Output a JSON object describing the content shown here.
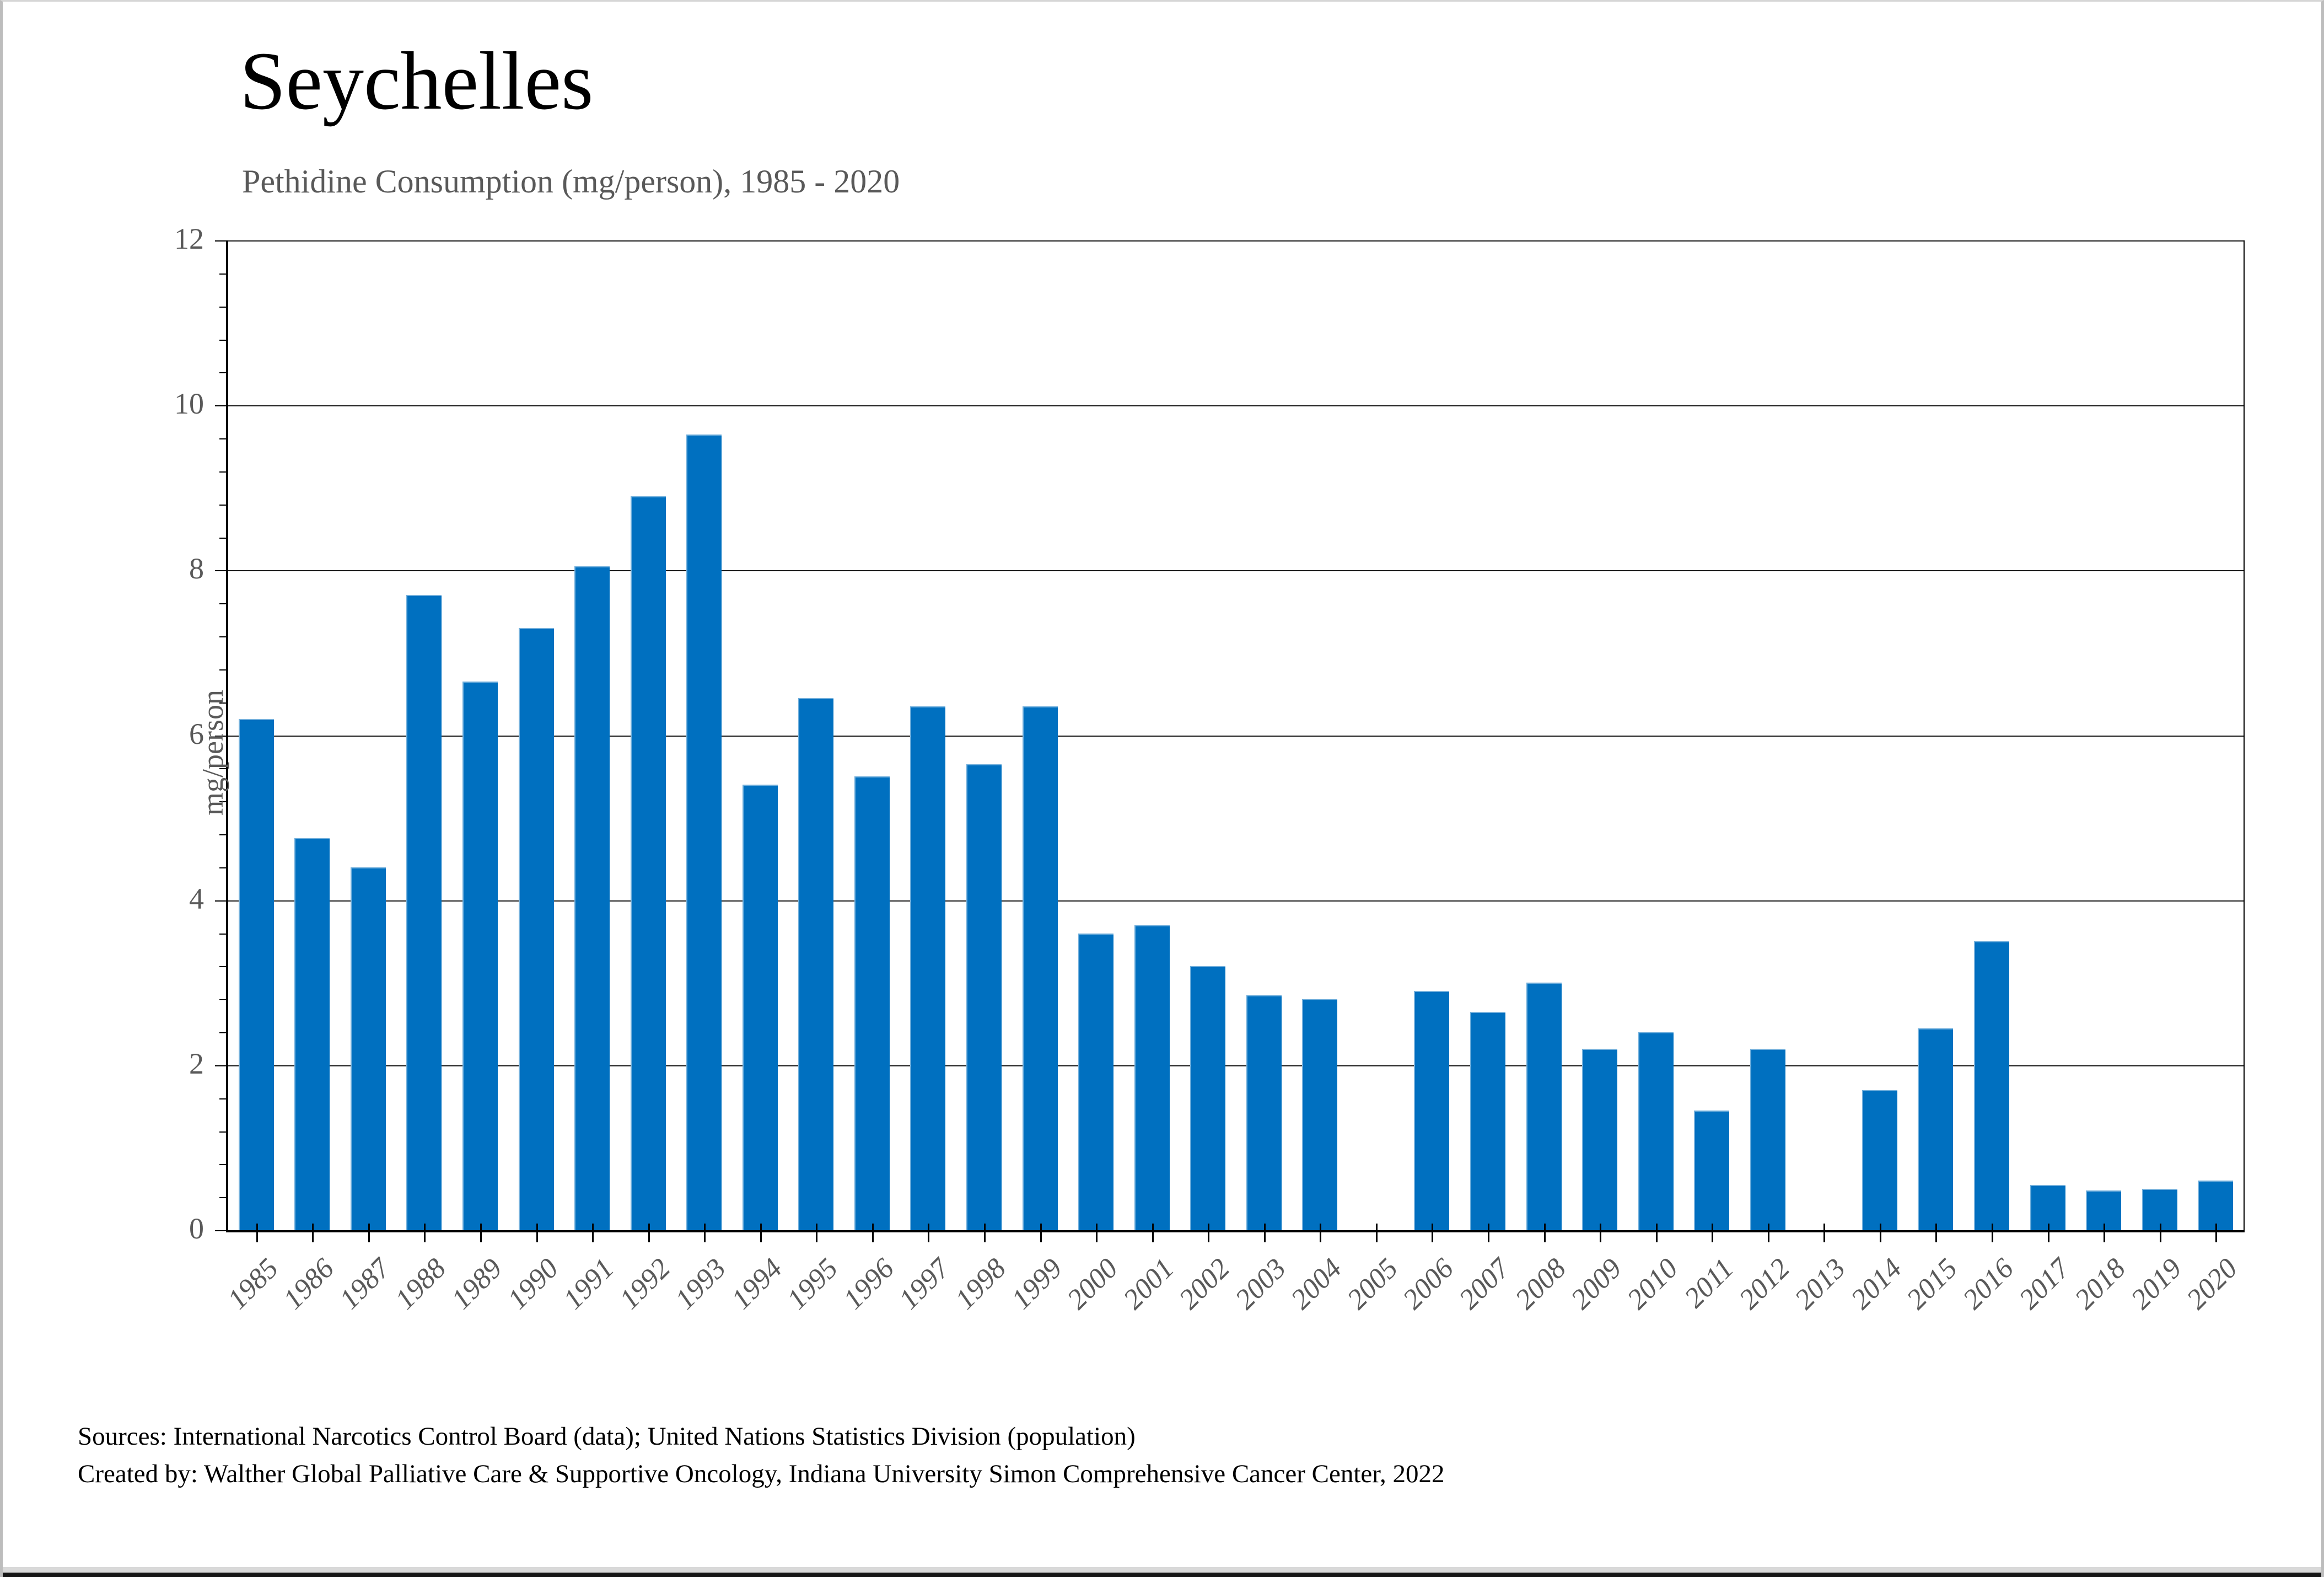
{
  "header": {
    "title": "Seychelles",
    "subtitle": "Pethidine Consumption (mg/person), 1985 - 2020"
  },
  "chart_data": {
    "type": "bar",
    "title": "Seychelles",
    "subtitle": "Pethidine Consumption (mg/person), 1985 - 2020",
    "xlabel": "",
    "ylabel": "mg/person",
    "ylim": [
      0,
      12
    ],
    "ytick_major": [
      0,
      2,
      4,
      6,
      8,
      10,
      12
    ],
    "ytick_minor_step": 0.4,
    "grid": "horizontal-major",
    "legend": "none",
    "bar_color": "#0070C0",
    "categories": [
      "1985",
      "1986",
      "1987",
      "1988",
      "1989",
      "1990",
      "1991",
      "1992",
      "1993",
      "1994",
      "1995",
      "1996",
      "1997",
      "1998",
      "1999",
      "2000",
      "2001",
      "2002",
      "2003",
      "2004",
      "2005",
      "2006",
      "2007",
      "2008",
      "2009",
      "2010",
      "2011",
      "2012",
      "2013",
      "2014",
      "2015",
      "2016",
      "2017",
      "2018",
      "2019",
      "2020"
    ],
    "values": [
      6.2,
      4.75,
      4.4,
      7.7,
      6.65,
      7.3,
      8.05,
      8.9,
      9.65,
      5.4,
      6.45,
      5.5,
      6.35,
      5.65,
      6.35,
      3.6,
      3.7,
      3.2,
      2.85,
      2.8,
      null,
      2.9,
      2.65,
      3.0,
      2.2,
      2.4,
      1.45,
      2.2,
      null,
      1.7,
      2.45,
      3.5,
      0.55,
      0.48,
      0.5,
      0.6
    ]
  },
  "footer": {
    "source_line1": "Sources: International Narcotics Control Board (data); United Nations Statistics Division (population)",
    "source_line2": "Created by: Walther Global Palliative Care & Supportive Oncology, Indiana University Simon Comprehensive Cancer Center, 2022"
  },
  "colors": {
    "bar": "#0070C0",
    "axis_text": "#595959",
    "gridline": "#1a1a1a",
    "title_text": "#000000"
  }
}
